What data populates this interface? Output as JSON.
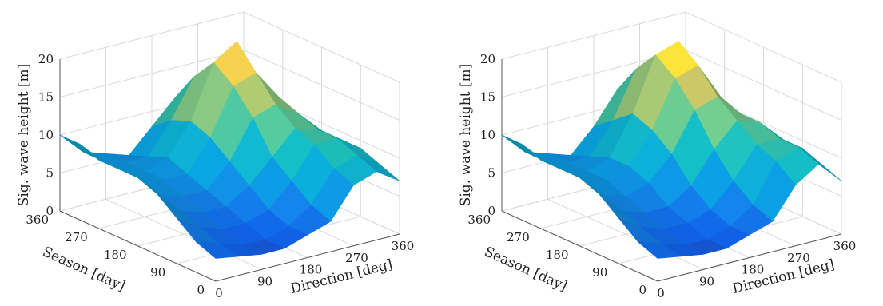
{
  "chart_data": [
    {
      "type": "surface",
      "xlabel": "Direction [deg]",
      "ylabel": "Season [day]",
      "zlabel": "Sig. wave height [m]",
      "xticks": [
        "0",
        "90",
        "180",
        "270",
        "360"
      ],
      "yticks": [
        "0",
        "90",
        "180",
        "270",
        "360"
      ],
      "zticks": [
        "0",
        "5",
        "10",
        "15",
        "20"
      ],
      "xlim": [
        0,
        360
      ],
      "ylim": [
        0,
        360
      ],
      "zlim": [
        0,
        20
      ],
      "x": [
        0,
        45,
        90,
        135,
        180,
        225,
        270,
        315,
        360
      ],
      "y": [
        0,
        45,
        90,
        135,
        180,
        225,
        270,
        315,
        360
      ],
      "z": [
        [
          3,
          2.5,
          2,
          2,
          3,
          4,
          8,
          9,
          7
        ],
        [
          4,
          3,
          2,
          2,
          3,
          5,
          9,
          10,
          8
        ],
        [
          6,
          4,
          3,
          3,
          4,
          7,
          11,
          11,
          9
        ],
        [
          8,
          5,
          4,
          4,
          6,
          9,
          12,
          11,
          9
        ],
        [
          9,
          6,
          5,
          5,
          8,
          13,
          14,
          12,
          9
        ],
        [
          9,
          7,
          6,
          6,
          10,
          16,
          17,
          13,
          9
        ],
        [
          9,
          7,
          6,
          7,
          11,
          18,
          20,
          14,
          9
        ],
        [
          10,
          7,
          6,
          6,
          10,
          15,
          16,
          11,
          8
        ],
        [
          10,
          7,
          6,
          5,
          8,
          11,
          12,
          9,
          7
        ]
      ]
    },
    {
      "type": "surface",
      "xlabel": "Direction [deg]",
      "ylabel": "Season [day]",
      "zlabel": "Sig. wave height [m]",
      "xticks": [
        "0",
        "90",
        "180",
        "270",
        "360"
      ],
      "yticks": [
        "0",
        "90",
        "180",
        "270",
        "360"
      ],
      "zticks": [
        "0",
        "5",
        "10",
        "15",
        "20"
      ],
      "xlim": [
        0,
        360
      ],
      "ylim": [
        0,
        360
      ],
      "zlim": [
        0,
        20
      ],
      "x": [
        0,
        45,
        90,
        135,
        180,
        225,
        270,
        315,
        360
      ],
      "y": [
        0,
        45,
        90,
        135,
        180,
        225,
        270,
        315,
        360
      ],
      "z": [
        [
          3,
          2.5,
          2,
          2,
          3,
          4,
          8,
          10,
          7
        ],
        [
          4,
          3,
          2,
          2,
          3,
          5,
          10,
          11,
          8
        ],
        [
          6,
          4,
          3,
          3,
          4,
          7,
          11,
          11,
          9
        ],
        [
          8,
          5,
          4,
          4,
          6,
          10,
          13,
          12,
          9
        ],
        [
          9,
          6,
          5,
          6,
          9,
          14,
          15,
          12,
          9
        ],
        [
          9,
          7,
          6,
          7,
          11,
          17,
          18,
          13,
          9
        ],
        [
          9,
          7,
          6,
          7,
          12,
          19,
          20,
          14,
          9
        ],
        [
          10,
          7,
          6,
          6,
          10,
          16,
          17,
          12,
          8
        ],
        [
          10,
          7,
          6,
          5,
          8,
          12,
          12,
          9,
          7
        ]
      ]
    }
  ]
}
